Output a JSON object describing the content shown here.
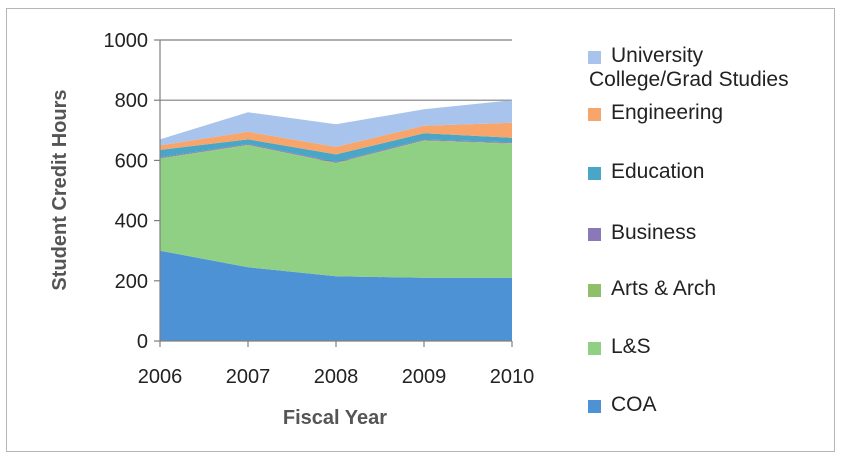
{
  "chart_data": {
    "type": "area",
    "stacked": true,
    "title": "",
    "xlabel": "Fiscal Year",
    "ylabel": "Student Credit Hours",
    "x": [
      "2006",
      "2007",
      "2008",
      "2009",
      "2010"
    ],
    "ylim": [
      0,
      1000
    ],
    "yticks": [
      "0",
      "200",
      "400",
      "600",
      "800",
      "1000"
    ],
    "grid": "horizontal",
    "legend_position": "right",
    "series": [
      {
        "name": "COA",
        "color": "#4e92d6",
        "values": [
          300,
          245,
          215,
          210,
          210
        ]
      },
      {
        "name": "L&S",
        "color": "#8fd085",
        "values": [
          305,
          405,
          375,
          455,
          445
        ]
      },
      {
        "name": "Arts & Arch",
        "color": "#8fbf68",
        "values": [
          2,
          2,
          2,
          2,
          2
        ]
      },
      {
        "name": "Business",
        "color": "#8a78b8",
        "values": [
          3,
          3,
          3,
          3,
          3
        ]
      },
      {
        "name": "Education",
        "color": "#4aa6c6",
        "values": [
          25,
          15,
          25,
          20,
          15
        ]
      },
      {
        "name": "Engineering",
        "color": "#f7a56a",
        "values": [
          15,
          25,
          25,
          25,
          50
        ]
      },
      {
        "name": "University College/Grad Studies",
        "color": "#a9c4ec",
        "values": [
          20,
          65,
          75,
          55,
          75
        ]
      }
    ]
  },
  "legend": [
    {
      "label_lines": [
        "University",
        "College/Grad Studies"
      ],
      "color": "#a9c4ec"
    },
    {
      "label_lines": [
        "Engineering"
      ],
      "color": "#f7a56a"
    },
    {
      "label_lines": [
        "Education"
      ],
      "color": "#4aa6c6"
    },
    {
      "label_lines": [
        "Business"
      ],
      "color": "#8a78b8"
    },
    {
      "label_lines": [
        "Arts & Arch"
      ],
      "color": "#8fbf68"
    },
    {
      "label_lines": [
        "L&S"
      ],
      "color": "#8fd085"
    },
    {
      "label_lines": [
        "COA"
      ],
      "color": "#4e92d6"
    }
  ]
}
